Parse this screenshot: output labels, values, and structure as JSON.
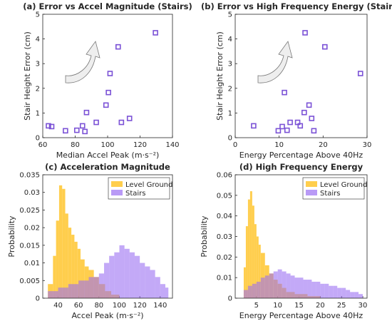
{
  "colors": {
    "scatter_marker": "#7b52d6",
    "level_ground": "#ffc62e",
    "stairs": "#9b6ff2",
    "arrow_fill": "#eeeeee",
    "arrow_stroke": "#777777"
  },
  "chart_data": [
    {
      "type": "scatter",
      "title": "(a) Error vs Accel Magnitude (Stairs)",
      "xlabel": "Median Accel Peak (m·s⁻²)",
      "ylabel": "Stair Height Error (cm)",
      "xlim": [
        60,
        140
      ],
      "ylim": [
        0,
        5
      ],
      "xticks": [
        "60",
        "80",
        "100",
        "120",
        "140"
      ],
      "yticks": [
        "0",
        "1",
        "2",
        "3",
        "4",
        "5"
      ],
      "marker": "open-square",
      "points": [
        [
          63.5,
          0.48
        ],
        [
          65.5,
          0.45
        ],
        [
          74,
          0.28
        ],
        [
          81,
          0.3
        ],
        [
          84.5,
          0.48
        ],
        [
          86,
          0.25
        ],
        [
          87,
          1.02
        ],
        [
          93,
          0.62
        ],
        [
          99,
          1.32
        ],
        [
          100.5,
          1.83
        ],
        [
          101.5,
          2.6
        ],
        [
          106.5,
          3.68
        ],
        [
          108.5,
          0.62
        ],
        [
          113.5,
          0.78
        ],
        [
          129.5,
          4.25
        ]
      ]
    },
    {
      "type": "scatter",
      "title": "(b) Error vs High Frequency Energy (Stairs)",
      "xlabel": "Energy Percentage Above 40Hz",
      "ylabel": "Stair Height Error (cm)",
      "xlim": [
        0,
        30
      ],
      "ylim": [
        0,
        5
      ],
      "xticks": [
        "0",
        "10",
        "20",
        "30"
      ],
      "yticks": [
        "0",
        "1",
        "2",
        "3",
        "4",
        "5"
      ],
      "marker": "open-square",
      "points": [
        [
          4.2,
          0.48
        ],
        [
          9.8,
          0.28
        ],
        [
          10.7,
          0.45
        ],
        [
          11.2,
          1.83
        ],
        [
          11.8,
          0.3
        ],
        [
          12.5,
          0.62
        ],
        [
          14.2,
          0.62
        ],
        [
          14.8,
          0.48
        ],
        [
          15.7,
          1.02
        ],
        [
          15.9,
          4.25
        ],
        [
          16.8,
          1.32
        ],
        [
          17.4,
          0.78
        ],
        [
          17.9,
          0.28
        ],
        [
          20.4,
          3.68
        ],
        [
          28.5,
          2.6
        ]
      ]
    },
    {
      "type": "histogram",
      "title": "(c) Acceleration Magnitude",
      "xlabel": "Accel Peak (m·s⁻²)",
      "ylabel": "Probability",
      "xlim": [
        25,
        152
      ],
      "ylim": [
        0,
        0.035
      ],
      "xticks": [
        "40",
        "60",
        "80",
        "100",
        "120",
        "140"
      ],
      "yticks": [
        "0",
        "0.005",
        "0.01",
        "0.015",
        "0.02",
        "0.025",
        "0.03",
        "0.035"
      ],
      "legend": "top-right",
      "series": [
        {
          "name": "Level Ground",
          "color": "#ffc62e",
          "bins": [
            [
              30,
              35,
              0.004
            ],
            [
              35,
              38,
              0.012
            ],
            [
              38,
              41,
              0.022
            ],
            [
              41,
              44,
              0.032
            ],
            [
              44,
              47,
              0.031
            ],
            [
              47,
              50,
              0.024
            ],
            [
              50,
              53,
              0.02
            ],
            [
              53,
              56,
              0.018
            ],
            [
              56,
              59,
              0.016
            ],
            [
              59,
              62,
              0.014
            ],
            [
              62,
              66,
              0.011
            ],
            [
              66,
              70,
              0.009
            ],
            [
              70,
              75,
              0.008
            ],
            [
              75,
              80,
              0.006
            ],
            [
              80,
              86,
              0.004
            ],
            [
              86,
              92,
              0.002
            ],
            [
              92,
              100,
              0.001
            ]
          ]
        },
        {
          "name": "Stairs",
          "color": "#9b6ff2",
          "bins": [
            [
              30,
              40,
              0.002
            ],
            [
              40,
              50,
              0.003
            ],
            [
              50,
              60,
              0.004
            ],
            [
              60,
              70,
              0.005
            ],
            [
              70,
              80,
              0.006
            ],
            [
              80,
              85,
              0.007
            ],
            [
              85,
              90,
              0.01
            ],
            [
              90,
              95,
              0.012
            ],
            [
              95,
              100,
              0.013
            ],
            [
              100,
              105,
              0.015
            ],
            [
              105,
              110,
              0.014
            ],
            [
              110,
              115,
              0.013
            ],
            [
              115,
              120,
              0.012
            ],
            [
              120,
              125,
              0.01
            ],
            [
              125,
              130,
              0.009
            ],
            [
              130,
              135,
              0.008
            ],
            [
              135,
              140,
              0.006
            ],
            [
              140,
              145,
              0.004
            ],
            [
              145,
              148,
              0.003
            ]
          ]
        }
      ]
    },
    {
      "type": "histogram",
      "title": "(d) High Frequency Energy",
      "xlabel": "Energy Percentage Above 40Hz",
      "ylabel": "Probability",
      "xlim": [
        0,
        31
      ],
      "ylim": [
        0,
        0.06
      ],
      "xticks": [
        "5",
        "10",
        "15",
        "20",
        "25",
        "30"
      ],
      "yticks": [
        "0",
        "0.01",
        "0.02",
        "0.03",
        "0.04",
        "0.05",
        "0.06"
      ],
      "legend": "top-right",
      "series": [
        {
          "name": "Level Ground",
          "color": "#ffc62e",
          "bins": [
            [
              2,
              2.5,
              0.015
            ],
            [
              2.5,
              3,
              0.035
            ],
            [
              3,
              3.5,
              0.048
            ],
            [
              3.5,
              4,
              0.052
            ],
            [
              4,
              4.5,
              0.045
            ],
            [
              4.5,
              5,
              0.036
            ],
            [
              5,
              5.5,
              0.03
            ],
            [
              5.5,
              6,
              0.026
            ],
            [
              6,
              7,
              0.022
            ],
            [
              7,
              8,
              0.016
            ],
            [
              8,
              9,
              0.012
            ],
            [
              9,
              10,
              0.009
            ],
            [
              10,
              11,
              0.007
            ],
            [
              11,
              12,
              0.005
            ],
            [
              12,
              14,
              0.003
            ],
            [
              14,
              17,
              0.002
            ],
            [
              17,
              20,
              0.001
            ]
          ]
        },
        {
          "name": "Stairs",
          "color": "#9b6ff2",
          "bins": [
            [
              2,
              3,
              0.004
            ],
            [
              3,
              4,
              0.006
            ],
            [
              4,
              5,
              0.007
            ],
            [
              5,
              6,
              0.008
            ],
            [
              6,
              7,
              0.01
            ],
            [
              7,
              8,
              0.011
            ],
            [
              8,
              9,
              0.012
            ],
            [
              9,
              10,
              0.013
            ],
            [
              10,
              11,
              0.014
            ],
            [
              11,
              12,
              0.013
            ],
            [
              12,
              13,
              0.012
            ],
            [
              13,
              14,
              0.011
            ],
            [
              14,
              15,
              0.01
            ],
            [
              15,
              16,
              0.01
            ],
            [
              16,
              17,
              0.009
            ],
            [
              17,
              18,
              0.009
            ],
            [
              18,
              19,
              0.008
            ],
            [
              19,
              20,
              0.008
            ],
            [
              20,
              21,
              0.007
            ],
            [
              21,
              22,
              0.007
            ],
            [
              22,
              23,
              0.006
            ],
            [
              23,
              24,
              0.006
            ],
            [
              24,
              25,
              0.005
            ],
            [
              25,
              26,
              0.005
            ],
            [
              26,
              27,
              0.004
            ],
            [
              27,
              28,
              0.003
            ],
            [
              28,
              29,
              0.003
            ],
            [
              29,
              30,
              0.002
            ]
          ]
        }
      ]
    }
  ]
}
